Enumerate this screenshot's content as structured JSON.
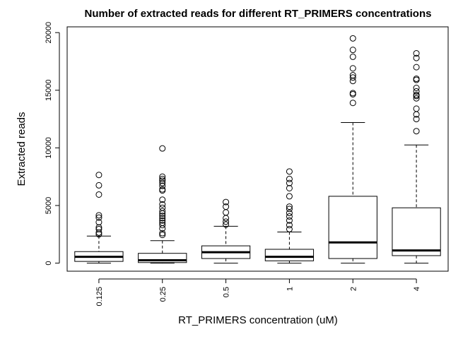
{
  "chart_data": {
    "type": "boxplot",
    "title": "Number of extracted reads for different RT_PRIMERS concentrations",
    "xlabel": "RT_PRIMERS concentration (uM)",
    "ylabel": "Extracted reads",
    "categories": [
      "0.125",
      "0.25",
      "0.5",
      "1",
      "2",
      "4"
    ],
    "yticks": [
      0,
      5000,
      10000,
      15000,
      20000
    ],
    "ylim": [
      -700,
      20500
    ],
    "grid": false,
    "boxes": [
      {
        "category": "0.125",
        "whisker_low": 0,
        "q1": 150,
        "median": 550,
        "q3": 1000,
        "whisker_high": 2350,
        "outliers": [
          7650,
          6750,
          5950,
          4150,
          3950,
          3550,
          3100,
          2950,
          2650,
          2500
        ]
      },
      {
        "category": "0.25",
        "whisker_low": 0,
        "q1": 50,
        "median": 250,
        "q3": 850,
        "whisker_high": 1950,
        "outliers": [
          9950,
          7500,
          7300,
          7150,
          6950,
          6700,
          6400,
          6300,
          5500,
          5100,
          4800,
          4500,
          4300,
          4100,
          3900,
          3700,
          3500,
          3300,
          3000,
          2600,
          2450
        ]
      },
      {
        "category": "0.5",
        "whisker_low": 0,
        "q1": 400,
        "median": 950,
        "q3": 1500,
        "whisker_high": 3200,
        "outliers": [
          5300,
          4900,
          4400,
          3900,
          3600,
          3350
        ]
      },
      {
        "category": "1",
        "whisker_low": 0,
        "q1": 200,
        "median": 550,
        "q3": 1200,
        "whisker_high": 2700,
        "outliers": [
          7950,
          7300,
          6950,
          6500,
          5800,
          4900,
          4700,
          4350,
          4050,
          3700,
          3300,
          2950
        ]
      },
      {
        "category": "2",
        "whisker_low": 0,
        "q1": 400,
        "median": 1800,
        "q3": 5800,
        "whisker_high": 12200,
        "outliers": [
          19500,
          18500,
          17900,
          16900,
          16300,
          16100,
          15800,
          14750,
          14650,
          13900
        ]
      },
      {
        "category": "4",
        "whisker_low": 0,
        "q1": 650,
        "median": 1100,
        "q3": 4800,
        "whisker_high": 10250,
        "outliers": [
          18200,
          17800,
          17000,
          16000,
          15900,
          15200,
          14900,
          14600,
          14500,
          14300,
          13400,
          12900,
          12500,
          11450
        ]
      }
    ]
  }
}
